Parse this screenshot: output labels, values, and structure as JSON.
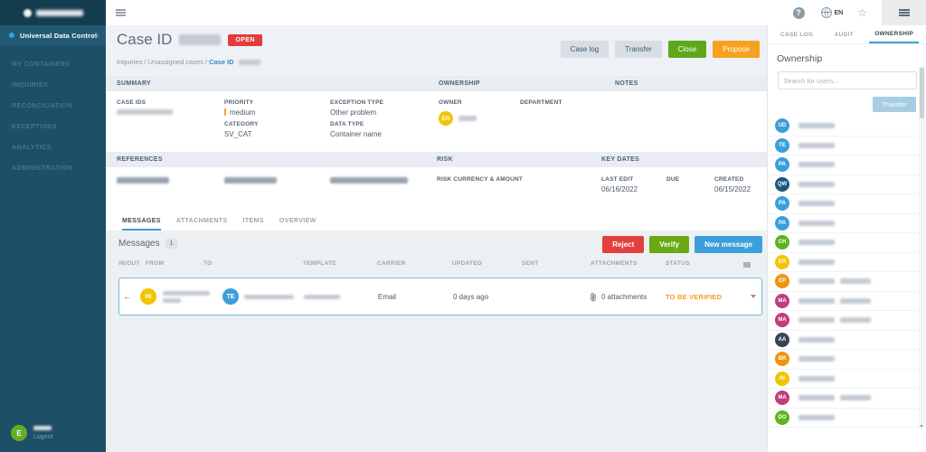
{
  "app": {
    "language": "EN"
  },
  "sidebar": {
    "product": "Universal Data Control",
    "items": [
      "MY CONTAINERS",
      "INQUIRIES",
      "RECONCILIATION",
      "EXCEPTIONS",
      "ANALYTICS",
      "ADMINISTRATION"
    ],
    "user": {
      "initials": "E",
      "color": "#64ad27",
      "logout": "Logout"
    }
  },
  "header": {
    "title": "Case ID",
    "status": "OPEN",
    "breadcrumb": {
      "path": "Inquiries / Unassigned cases /",
      "current": "Case ID"
    },
    "buttons": {
      "case_log": "Case log",
      "transfer": "Transfer",
      "close": "Close",
      "propose": "Propose"
    }
  },
  "summary": {
    "heading": "SUMMARY",
    "case_ids_label": "CASE IDS",
    "priority_label": "PRIORITY",
    "priority_value": "medium",
    "category_label": "CATEGORY",
    "category_value": "SV_CAT",
    "exception_type_label": "EXCEPTION TYPE",
    "exception_type_value": "Other problem",
    "data_type_label": "DATA TYPE",
    "data_type_value": "Container name"
  },
  "ownership_section": {
    "heading": "OWNERSHIP",
    "owner_label": "OWNER",
    "owner_initials": "ER",
    "owner_color": "#f2c400",
    "department_label": "DEPARTMENT"
  },
  "notes_section": {
    "heading": "NOTES"
  },
  "references_section": {
    "heading": "REFERENCES"
  },
  "risk_section": {
    "heading": "RISK",
    "risk_currency_label": "RISK CURRENCY & AMOUNT"
  },
  "key_dates": {
    "heading": "KEY DATES",
    "last_edit_label": "LAST EDIT",
    "last_edit_value": "06/16/2022",
    "due_label": "DUE",
    "created_label": "CREATED",
    "created_value": "06/15/2022"
  },
  "tabs": [
    "MESSAGES",
    "ATTACHMENTS",
    "ITEMS",
    "OVERVIEW"
  ],
  "messages": {
    "title": "Messages",
    "count": "1",
    "buttons": {
      "reject": "Reject",
      "verify": "Verify",
      "new_message": "New message"
    },
    "columns": [
      "IN/OUT",
      "FROM",
      "TO",
      "TEMPLATE",
      "CARRIER",
      "UPDATED",
      "SENT",
      "ATTACHMENTS",
      "STATUS"
    ],
    "row": {
      "direction_arrow": "←",
      "from_initials": "IN",
      "from_color": "#f2c400",
      "to_initials": "TE",
      "to_color": "#3b9fd8",
      "carrier": "Email",
      "updated": "0 days ago",
      "attachments": "0 attachments",
      "status": "TO BE VERIFIED"
    }
  },
  "right_panel": {
    "tabs": [
      "CASE LOG",
      "AUDIT",
      "OWNERSHIP"
    ],
    "active_tab": "OWNERSHIP",
    "title": "Ownership",
    "search_placeholder": "Search for users...",
    "transfer_button": "Transfer",
    "users": [
      {
        "initials": "UD",
        "color": "#3b9fd8"
      },
      {
        "initials": "TE",
        "color": "#3b9fd8"
      },
      {
        "initials": "PA",
        "color": "#3b9fd8"
      },
      {
        "initials": "QW",
        "color": "#175a80"
      },
      {
        "initials": "PA",
        "color": "#3b9fd8"
      },
      {
        "initials": "PA",
        "color": "#3b9fd8"
      },
      {
        "initials": "CH",
        "color": "#5db321"
      },
      {
        "initials": "ER",
        "color": "#f2c400"
      },
      {
        "initials": "EP",
        "color": "#f0930f",
        "two_part_name": true
      },
      {
        "initials": "MA",
        "color": "#c13d7d",
        "two_part_name": true
      },
      {
        "initials": "MA",
        "color": "#c13d7d",
        "two_part_name": true
      },
      {
        "initials": "AA",
        "color": "#3a4552"
      },
      {
        "initials": "BR",
        "color": "#f0930f"
      },
      {
        "initials": "IN",
        "color": "#f2c400"
      },
      {
        "initials": "MA",
        "color": "#c13d7d",
        "two_part_name": true
      },
      {
        "initials": "DO",
        "color": "#5db321"
      }
    ]
  },
  "colors": {
    "sidebar_bg": "#1d4f66",
    "accent_blue": "#3b9fd8",
    "open_badge": "#e23d3d",
    "close_button": "#5da71b",
    "propose_button": "#f6a21f",
    "reject_button": "#e2403f",
    "verify_button": "#6aa913",
    "new_message_button": "#3d9fd9",
    "status_to_be_verified": "#f59a23",
    "priority_medium": "#f5a623"
  }
}
